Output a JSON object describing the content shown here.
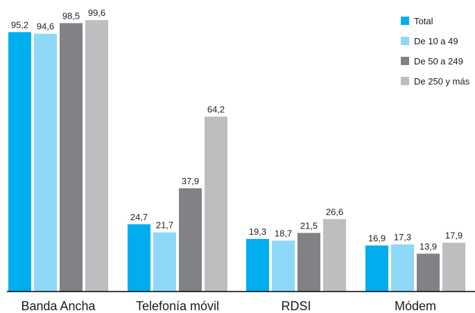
{
  "chart_data": {
    "type": "bar",
    "title": "",
    "xlabel": "",
    "ylabel": "",
    "ylim": [
      0,
      100
    ],
    "grid": false,
    "legend_position": "top-right",
    "categories": [
      "Banda Ancha",
      "Telefonía móvil",
      "RDSI",
      "Módem"
    ],
    "series": [
      {
        "name": "Total",
        "color": "#00aeef",
        "values": [
          95.2,
          24.7,
          19.3,
          16.9
        ],
        "labels": [
          "95,2",
          "24,7",
          "19,3",
          "16,9"
        ]
      },
      {
        "name": "De 10 a 49",
        "color": "#8ed8f8",
        "values": [
          94.6,
          21.7,
          18.7,
          17.3
        ],
        "labels": [
          "94,6",
          "21,7",
          "18,7",
          "17,3"
        ]
      },
      {
        "name": "De 50 a 249",
        "color": "#808285",
        "values": [
          98.5,
          37.9,
          21.5,
          13.9
        ],
        "labels": [
          "98,5",
          "37,9",
          "21,5",
          "13,9"
        ]
      },
      {
        "name": "De 250 y más",
        "color": "#bcbec0",
        "values": [
          99.6,
          64.2,
          26.6,
          17.9
        ],
        "labels": [
          "99,6",
          "64,2",
          "26,6",
          "17,9"
        ]
      }
    ]
  }
}
